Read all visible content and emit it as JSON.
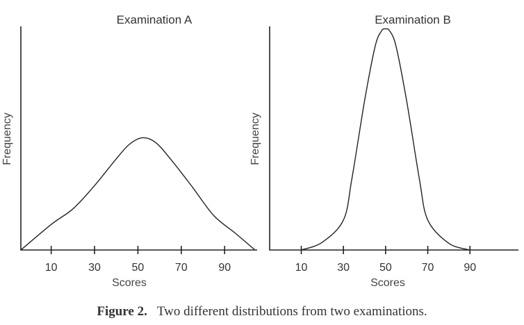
{
  "chart_data": [
    {
      "type": "line",
      "title": "Examination A",
      "xlabel": "Scores",
      "ylabel": "Frequency",
      "x_ticks": [
        "10",
        "30",
        "50",
        "70",
        "90"
      ],
      "x_tick_values": [
        10,
        30,
        50,
        70,
        90
      ],
      "xlim": [
        -4,
        105
      ],
      "ylim": [
        0,
        1
      ],
      "y_ticks": [],
      "series": [
        {
          "x": [
            -4,
            10,
            20,
            30,
            40,
            46,
            52,
            58,
            65,
            75,
            85,
            95,
            104
          ],
          "y": [
            0.0,
            0.115,
            0.185,
            0.29,
            0.41,
            0.475,
            0.505,
            0.485,
            0.41,
            0.285,
            0.155,
            0.075,
            0.0
          ]
        }
      ]
    },
    {
      "type": "line",
      "title": "Examination B",
      "xlabel": "Scores",
      "ylabel": "Frequency",
      "x_ticks": [
        "10",
        "30",
        "50",
        "70",
        "90"
      ],
      "x_tick_values": [
        10,
        30,
        50,
        70,
        90
      ],
      "xlim": [
        -5,
        113
      ],
      "ylim": [
        0,
        1
      ],
      "y_ticks": [],
      "series": [
        {
          "x": [
            10,
            20,
            30,
            34,
            40,
            45,
            48,
            50,
            52,
            55,
            60,
            66,
            70,
            80,
            90
          ],
          "y": [
            0.0,
            0.035,
            0.135,
            0.32,
            0.67,
            0.915,
            0.985,
            0.995,
            0.985,
            0.915,
            0.67,
            0.32,
            0.135,
            0.03,
            0.0
          ]
        }
      ]
    }
  ],
  "caption": {
    "label": "Figure 2.",
    "text": "Two different distributions from two examinations."
  }
}
